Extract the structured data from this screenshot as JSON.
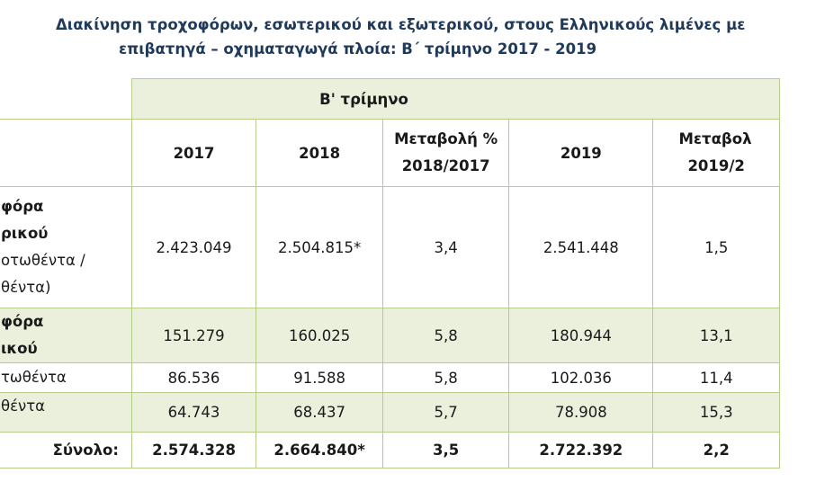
{
  "title": {
    "line1": "Διακίνηση τροχοφόρων, εσωτερικού και εξωτερικού, στους Ελληνικούς λιμένες με",
    "line2": "επιβατηγά – οχηματαγωγά πλοία: Β΄ τρίμηνο 2017 - 2019"
  },
  "table": {
    "group_header": "Β' τρίμηνο",
    "columns": [
      "2017",
      "2018",
      "Μεταβολή % 2018/2017",
      "2019",
      "Μεταβολ 2019/2"
    ],
    "col_change1_line1": "Μεταβολή %",
    "col_change1_line2": "2018/2017",
    "col_change2_line1": "Μεταβολ",
    "col_change2_line2": "2019/2",
    "rows": [
      {
        "label_line1": "φόρα",
        "label_line2": "ρικού",
        "label_line3": "οτωθέντα /",
        "label_line4": "θέντα)",
        "v2017": "2.423.049",
        "v2018": "2.504.815*",
        "chg1": "3,4",
        "v2019": "2.541.448",
        "chg2": "1,5"
      },
      {
        "label_line1": "φόρα",
        "label_line2": "ικού",
        "v2017": "151.279",
        "v2018": "160.025",
        "chg1": "5,8",
        "v2019": "180.944",
        "chg2": "13,1"
      },
      {
        "label_line1": "τωθέντα",
        "v2017": "86.536",
        "v2018": "91.588",
        "chg1": "5,8",
        "v2019": "102.036",
        "chg2": "11,4"
      },
      {
        "label_line1": "θέντα",
        "v2017": "64.743",
        "v2018": "68.437",
        "chg1": "5,7",
        "v2019": "78.908",
        "chg2": "15,3"
      }
    ],
    "total": {
      "label": "Σύνολο:",
      "v2017": "2.574.328",
      "v2018": "2.664.840*",
      "chg1": "3,5",
      "v2019": "2.722.392",
      "chg2": "2,2"
    }
  }
}
